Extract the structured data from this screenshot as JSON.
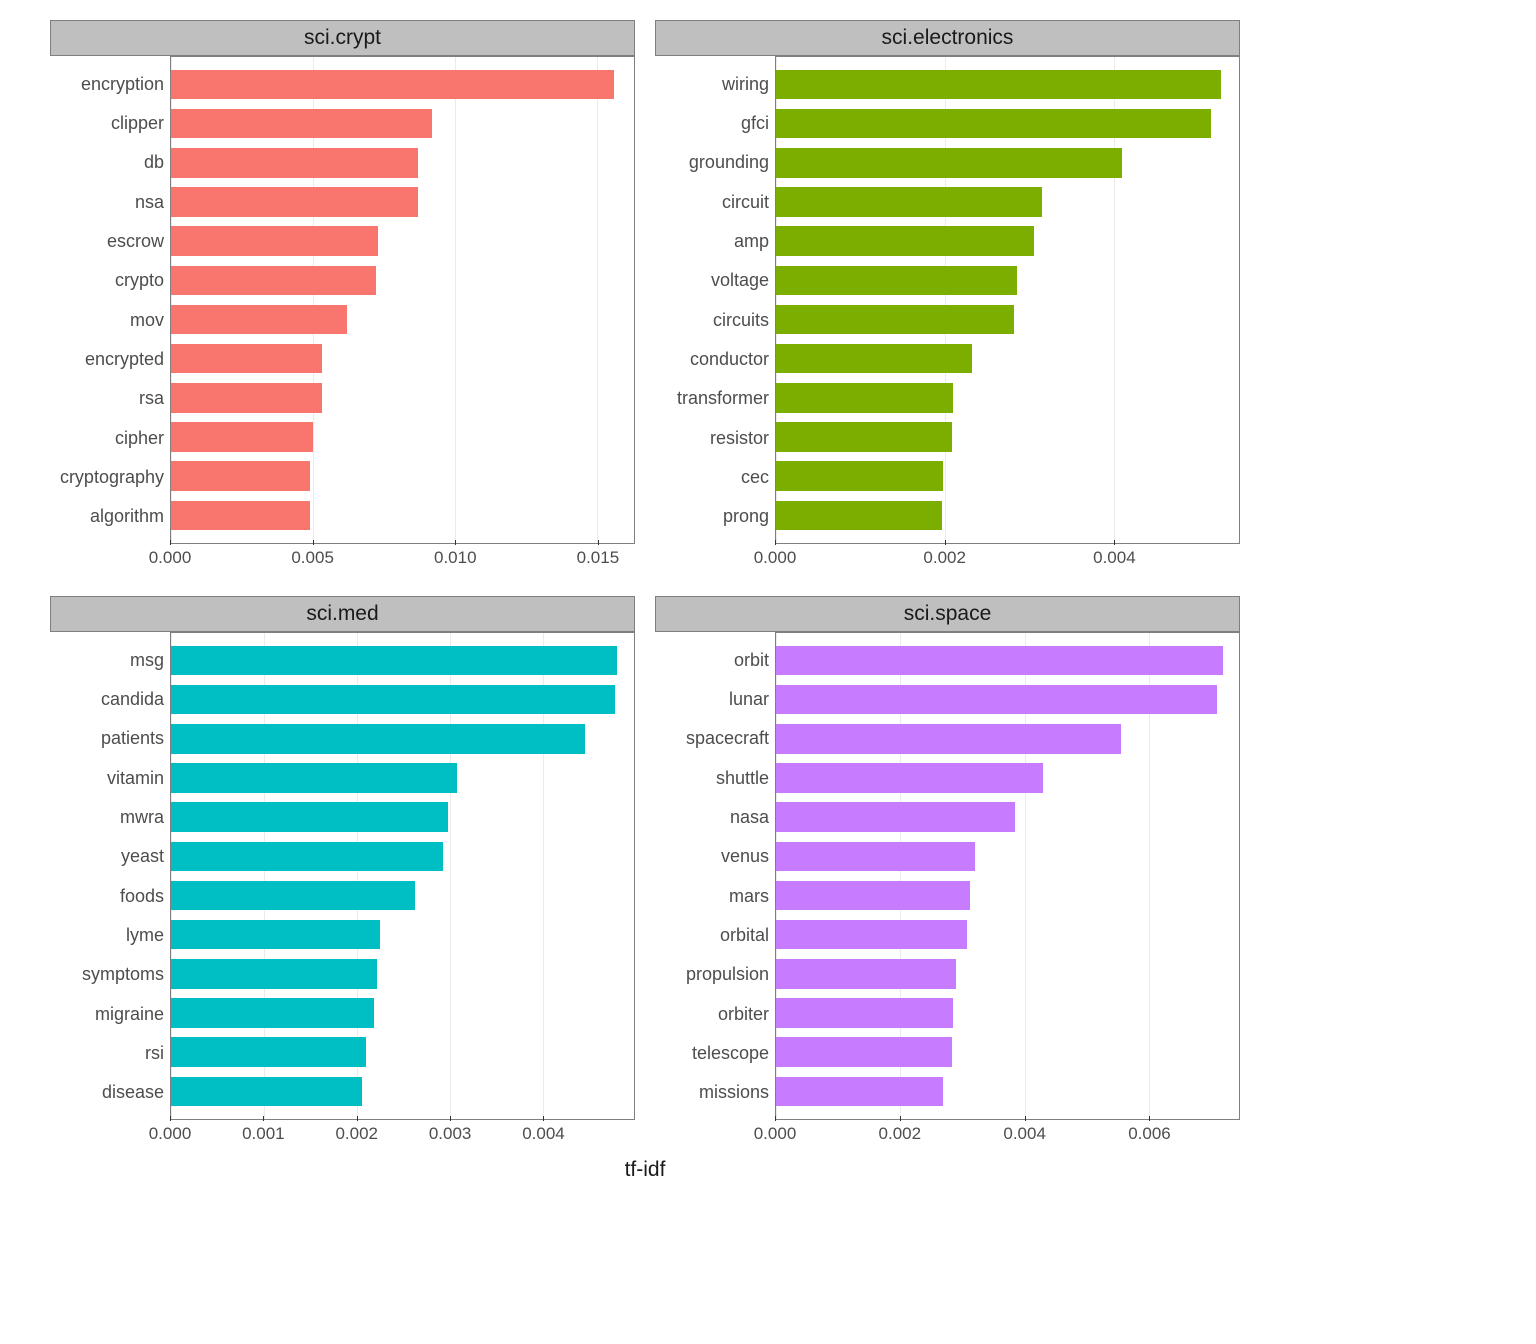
{
  "figure": {
    "background_color": "#ffffff",
    "grid_color": "#ebebeb",
    "panel_border_color": "#7f7f7f",
    "strip_fill": "#bfbfbf",
    "strip_text_color": "#1a1a1a",
    "axis_text_color": "#4d4d4d",
    "title_fontsize": 21,
    "axis_fontsize": 18,
    "tick_fontsize": 17,
    "n_bars": 12,
    "bar_rel_width": 0.78,
    "xlabel": "tf-idf"
  },
  "panels": [
    {
      "title": "sci.crypt",
      "bar_color": "#f8766d",
      "xlim": [
        0,
        0.0163
      ],
      "xticks": [
        0.0,
        0.005,
        0.01,
        0.015
      ],
      "xtick_labels": [
        "0.000",
        "0.005",
        "0.010",
        "0.015"
      ],
      "categories": [
        "encryption",
        "clipper",
        "db",
        "nsa",
        "escrow",
        "crypto",
        "mov",
        "encrypted",
        "rsa",
        "cipher",
        "cryptography",
        "algorithm"
      ],
      "values": [
        0.0156,
        0.0092,
        0.0087,
        0.0087,
        0.0073,
        0.0072,
        0.0062,
        0.0053,
        0.0053,
        0.005,
        0.0049,
        0.0049
      ]
    },
    {
      "title": "sci.electronics",
      "bar_color": "#7cae00",
      "xlim": [
        0,
        0.00548
      ],
      "xticks": [
        0.0,
        0.002,
        0.004
      ],
      "xtick_labels": [
        "0.000",
        "0.002",
        "0.004"
      ],
      "categories": [
        "wiring",
        "gfci",
        "grounding",
        "circuit",
        "amp",
        "voltage",
        "circuits",
        "conductor",
        "transformer",
        "resistor",
        "cec",
        "prong"
      ],
      "values": [
        0.00527,
        0.00515,
        0.0041,
        0.00315,
        0.00305,
        0.00285,
        0.00282,
        0.00232,
        0.0021,
        0.00208,
        0.00198,
        0.00197
      ]
    },
    {
      "title": "sci.med",
      "bar_color": "#00bfc4",
      "xlim": [
        0,
        0.00498
      ],
      "xticks": [
        0.0,
        0.001,
        0.002,
        0.003,
        0.004
      ],
      "xtick_labels": [
        "0.000",
        "0.001",
        "0.002",
        "0.003",
        "0.004"
      ],
      "categories": [
        "msg",
        "candida",
        "patients",
        "vitamin",
        "mwra",
        "yeast",
        "foods",
        "lyme",
        "symptoms",
        "migraine",
        "rsi",
        "disease"
      ],
      "values": [
        0.0048,
        0.00478,
        0.00445,
        0.00308,
        0.00298,
        0.00293,
        0.00262,
        0.00225,
        0.00222,
        0.00218,
        0.0021,
        0.00205
      ]
    },
    {
      "title": "sci.space",
      "bar_color": "#c77cff",
      "xlim": [
        0,
        0.00745
      ],
      "xticks": [
        0.0,
        0.002,
        0.004,
        0.006
      ],
      "xtick_labels": [
        "0.000",
        "0.002",
        "0.004",
        "0.006"
      ],
      "categories": [
        "orbit",
        "lunar",
        "spacecraft",
        "shuttle",
        "nasa",
        "venus",
        "mars",
        "orbital",
        "propulsion",
        "orbiter",
        "telescope",
        "missions"
      ],
      "values": [
        0.0072,
        0.0071,
        0.00555,
        0.0043,
        0.00385,
        0.0032,
        0.00312,
        0.00308,
        0.0029,
        0.00285,
        0.00283,
        0.00268
      ]
    }
  ]
}
